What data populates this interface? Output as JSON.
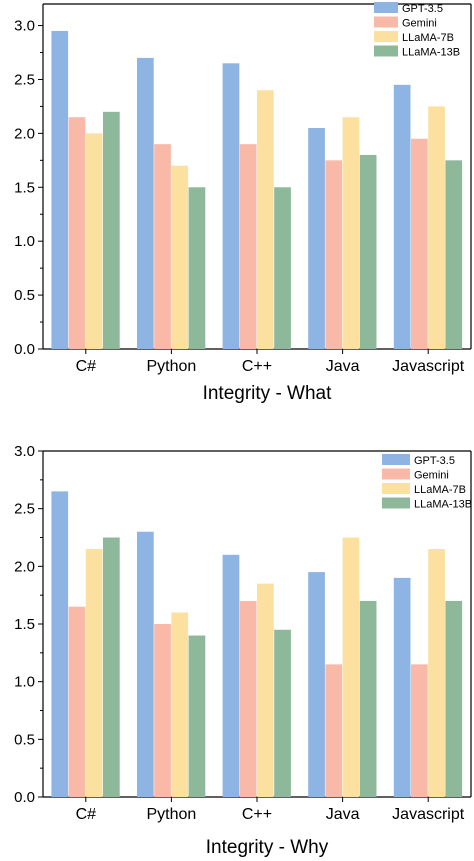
{
  "chart_data": [
    {
      "type": "bar",
      "xlabel": "Integrity - What",
      "ylabel": "",
      "ylim": [
        0,
        3.2
      ],
      "yticks": [
        "0.0",
        "0.5",
        "1.0",
        "1.5",
        "2.0",
        "2.5",
        "3.0"
      ],
      "categories": [
        "C#",
        "Python",
        "C++",
        "Java",
        "Javascript"
      ],
      "legend_position": "top-right",
      "grid": false,
      "series": [
        {
          "name": "GPT-3.5",
          "color": "#8eb4e3",
          "values": [
            2.95,
            2.7,
            2.65,
            2.05,
            2.45
          ]
        },
        {
          "name": "Gemini",
          "color": "#f8b9a9",
          "values": [
            2.15,
            1.9,
            1.9,
            1.75,
            1.95
          ]
        },
        {
          "name": "LLaMA-7B",
          "color": "#fbe0a0",
          "values": [
            2.0,
            1.7,
            2.4,
            2.15,
            2.25
          ]
        },
        {
          "name": "LLaMA-13B",
          "color": "#8db89a",
          "values": [
            2.2,
            1.5,
            1.5,
            1.8,
            1.75
          ]
        }
      ]
    },
    {
      "type": "bar",
      "xlabel": "Integrity - Why",
      "ylabel": "",
      "ylim": [
        0,
        3.0
      ],
      "yticks": [
        "0.0",
        "0.5",
        "1.0",
        "1.5",
        "2.0",
        "2.5",
        "3.0"
      ],
      "categories": [
        "C#",
        "Python",
        "C++",
        "Java",
        "Javascript"
      ],
      "legend_position": "top-right",
      "grid": false,
      "series": [
        {
          "name": "GPT-3.5",
          "color": "#8eb4e3",
          "values": [
            2.65,
            2.3,
            2.1,
            1.95,
            1.9
          ]
        },
        {
          "name": "Gemini",
          "color": "#f8b9a9",
          "values": [
            1.65,
            1.5,
            1.7,
            1.15,
            1.15
          ]
        },
        {
          "name": "LLaMA-7B",
          "color": "#fbe0a0",
          "values": [
            2.15,
            1.6,
            1.85,
            2.25,
            2.15
          ]
        },
        {
          "name": "LLaMA-13B",
          "color": "#8db89a",
          "values": [
            2.25,
            1.4,
            1.45,
            1.7,
            1.7
          ]
        }
      ]
    }
  ]
}
